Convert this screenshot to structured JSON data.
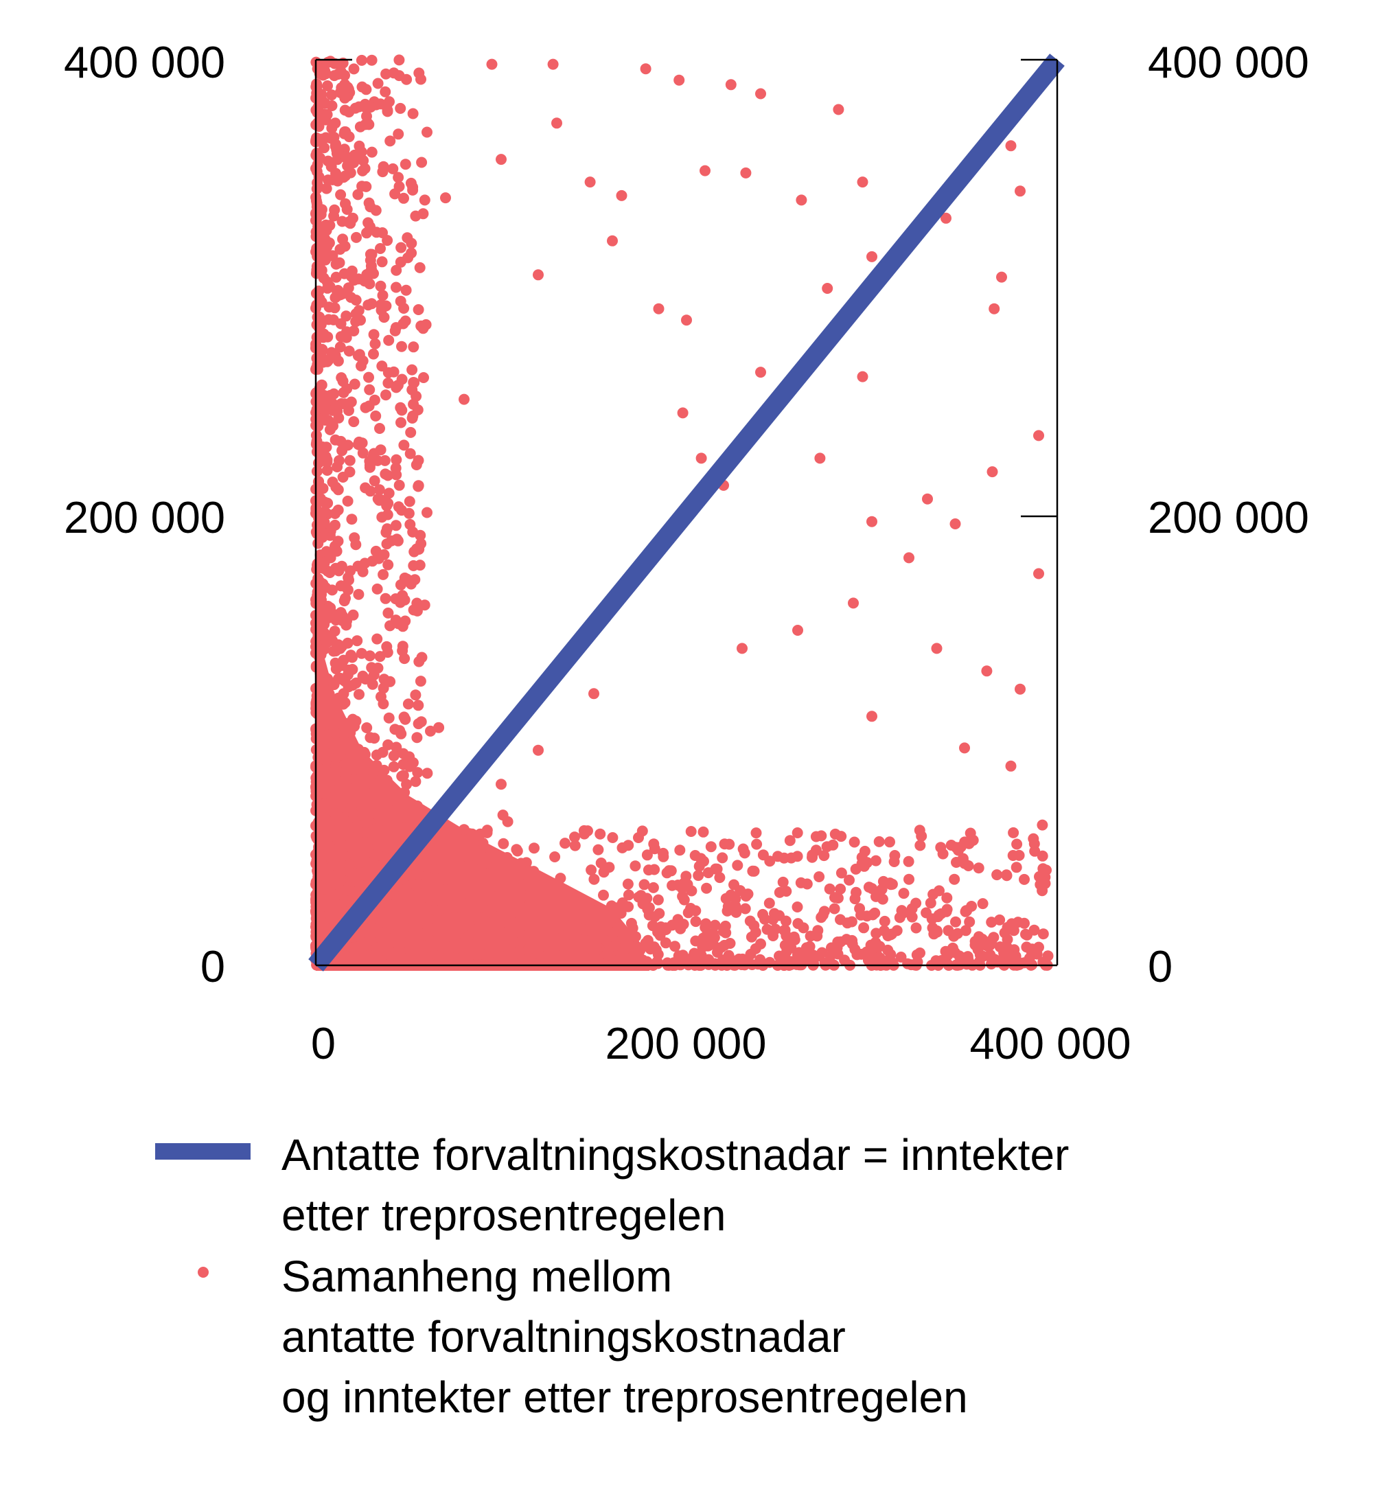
{
  "chart_data": {
    "type": "scatter",
    "title": "",
    "xlabel": "",
    "ylabel": "",
    "xlim": [
      0,
      400000
    ],
    "ylim": [
      0,
      400000
    ],
    "x_ticks": [
      0,
      200000,
      400000
    ],
    "x_tick_labels": [
      "0",
      "200 000",
      "400 000"
    ],
    "y_ticks_left": [
      0,
      200000,
      400000
    ],
    "y_tick_labels_left": [
      "0",
      "200 000",
      "400 000"
    ],
    "y_ticks_right": [
      0,
      200000,
      400000
    ],
    "y_tick_labels_right": [
      "0",
      "200 000",
      "400 000"
    ],
    "grid": false,
    "legend_position": "bottom",
    "colors": {
      "line": "#4356A6",
      "points": "#F06066",
      "axis": "#000000"
    },
    "series": [
      {
        "name": "Antatte forvaltningskostnadar = inntekter etter treprosentregelen",
        "type": "line",
        "x": [
          0,
          400000
        ],
        "y": [
          0,
          400000
        ]
      },
      {
        "name": "Samanheng mellom antatte forvaltningskostnadar og inntekter etter treprosentregelen",
        "type": "scatter",
        "note": "Several thousand points; dense near both axes (x<60 000 or y<60 000), sparse toward upper-right. Representative sample read from the figure:",
        "points": [
          [
            2000,
            396000
          ],
          [
            10000,
            393000
          ],
          [
            25000,
            388000
          ],
          [
            45000,
            393000
          ],
          [
            95000,
            398000
          ],
          [
            128000,
            398000
          ],
          [
            178000,
            396000
          ],
          [
            196000,
            391000
          ],
          [
            224000,
            389000
          ],
          [
            240000,
            385000
          ],
          [
            282000,
            378000
          ],
          [
            130000,
            372000
          ],
          [
            18000,
            366000
          ],
          [
            60000,
            368000
          ],
          [
            100000,
            356000
          ],
          [
            148000,
            346000
          ],
          [
            165000,
            340000
          ],
          [
            210000,
            351000
          ],
          [
            232000,
            350000
          ],
          [
            262000,
            338000
          ],
          [
            295000,
            346000
          ],
          [
            45000,
            344000
          ],
          [
            70000,
            339000
          ],
          [
            120000,
            305000
          ],
          [
            160000,
            320000
          ],
          [
            185000,
            290000
          ],
          [
            200000,
            285000
          ],
          [
            276000,
            299000
          ],
          [
            300000,
            313000
          ],
          [
            320000,
            320000
          ],
          [
            340000,
            330000
          ],
          [
            375000,
            362000
          ],
          [
            380000,
            342000
          ],
          [
            370000,
            304000
          ],
          [
            366000,
            290000
          ],
          [
            390000,
            234000
          ],
          [
            295000,
            260000
          ],
          [
            240000,
            262000
          ],
          [
            198000,
            244000
          ],
          [
            208000,
            224000
          ],
          [
            220000,
            212000
          ],
          [
            272000,
            224000
          ],
          [
            300000,
            196000
          ],
          [
            330000,
            206000
          ],
          [
            345000,
            195000
          ],
          [
            365000,
            218000
          ],
          [
            390000,
            173000
          ],
          [
            320000,
            180000
          ],
          [
            290000,
            160000
          ],
          [
            260000,
            148000
          ],
          [
            230000,
            140000
          ],
          [
            335000,
            140000
          ],
          [
            362000,
            130000
          ],
          [
            380000,
            122000
          ],
          [
            300000,
            110000
          ],
          [
            350000,
            96000
          ],
          [
            375000,
            88000
          ],
          [
            392000,
            62000
          ],
          [
            350000,
            45000
          ],
          [
            320000,
            38000
          ],
          [
            280000,
            30000
          ],
          [
            250000,
            22000
          ],
          [
            220000,
            15000
          ],
          [
            390000,
            8000
          ],
          [
            360000,
            4000
          ],
          [
            300000,
            2000
          ],
          [
            150000,
            120000
          ],
          [
            120000,
            95000
          ],
          [
            100000,
            80000
          ],
          [
            80000,
            60000
          ],
          [
            50000,
            40000
          ],
          [
            30000,
            20000
          ],
          [
            10000,
            5000
          ],
          [
            5000,
            250000
          ],
          [
            8000,
            180000
          ],
          [
            15000,
            120000
          ],
          [
            40000,
            150000
          ],
          [
            60000,
            200000
          ],
          [
            80000,
            250000
          ],
          [
            35000,
            300000
          ],
          [
            20000,
            330000
          ]
        ]
      }
    ]
  },
  "axes": {
    "left_labels": [
      "400 000",
      "200 000",
      "0"
    ],
    "right_labels": [
      "400 000",
      "200 000",
      "0"
    ],
    "bottom_labels": [
      "0",
      "200 000",
      "400 000"
    ]
  },
  "legend": {
    "line_label_lines": [
      "Antatte forvaltningskostnadar = inntekter",
      "etter treprosentregelen"
    ],
    "points_label_lines": [
      "Samanheng mellom",
      "antatte forvaltningskostnadar",
      "og inntekter etter treprosentregelen"
    ]
  }
}
